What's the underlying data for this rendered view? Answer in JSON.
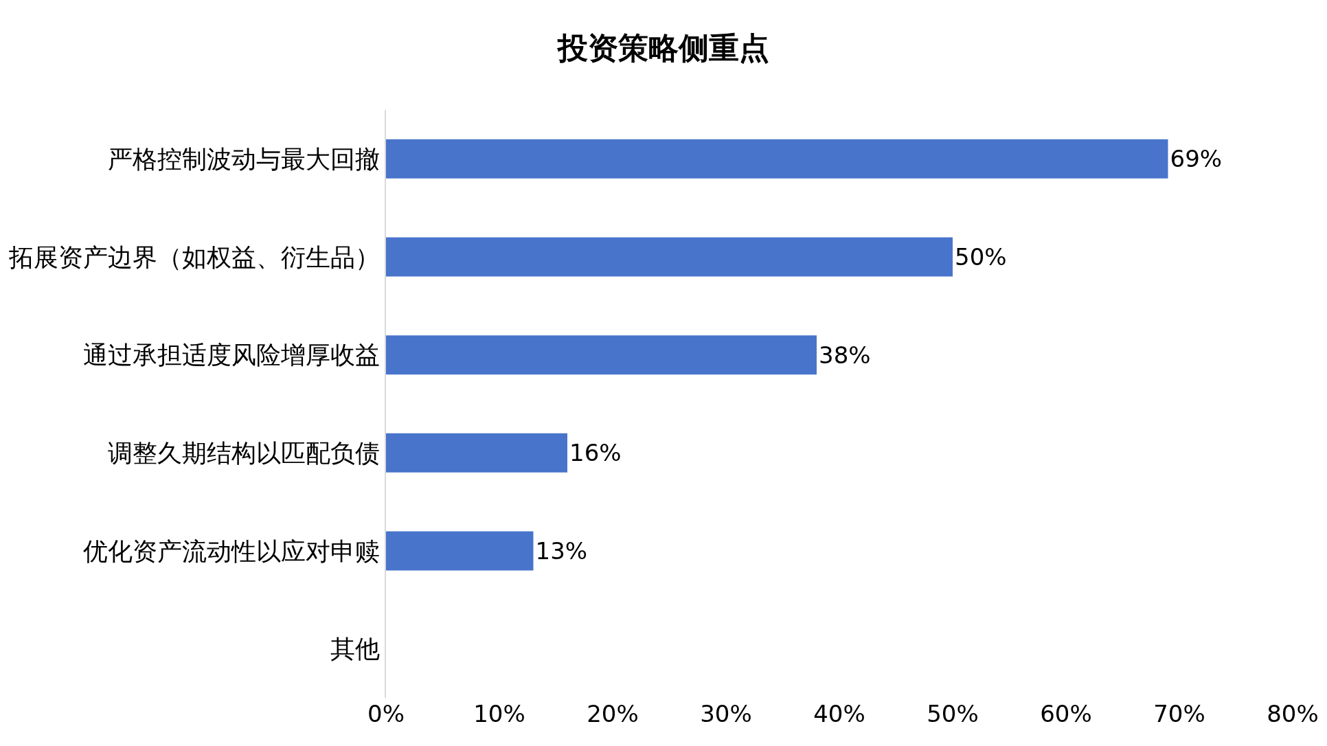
{
  "chart_data": {
    "type": "bar",
    "orientation": "horizontal",
    "title": "投资策略侧重点",
    "categories": [
      "严格控制波动与最大回撤",
      "拓展资产边界（如权益、衍生品）",
      "通过承担适度风险增厚收益",
      "调整久期结构以匹配负债",
      "优化资产流动性以应对申赎",
      "其他"
    ],
    "values": [
      69,
      50,
      38,
      16,
      13,
      0
    ],
    "value_labels": [
      "69%",
      "50%",
      "38%",
      "16%",
      "13%",
      null
    ],
    "color": "#4874cb",
    "xlim": [
      0,
      80
    ],
    "xticks": [
      {
        "value": 0,
        "label": "0%"
      },
      {
        "value": 10,
        "label": "10%"
      },
      {
        "value": 20,
        "label": "20%"
      },
      {
        "value": 30,
        "label": "30%"
      },
      {
        "value": 40,
        "label": "40%"
      },
      {
        "value": 50,
        "label": "50%"
      },
      {
        "value": 60,
        "label": "60%"
      },
      {
        "value": 70,
        "label": "70%"
      },
      {
        "value": 80,
        "label": "80%"
      }
    ],
    "grid": false,
    "legend": false
  }
}
